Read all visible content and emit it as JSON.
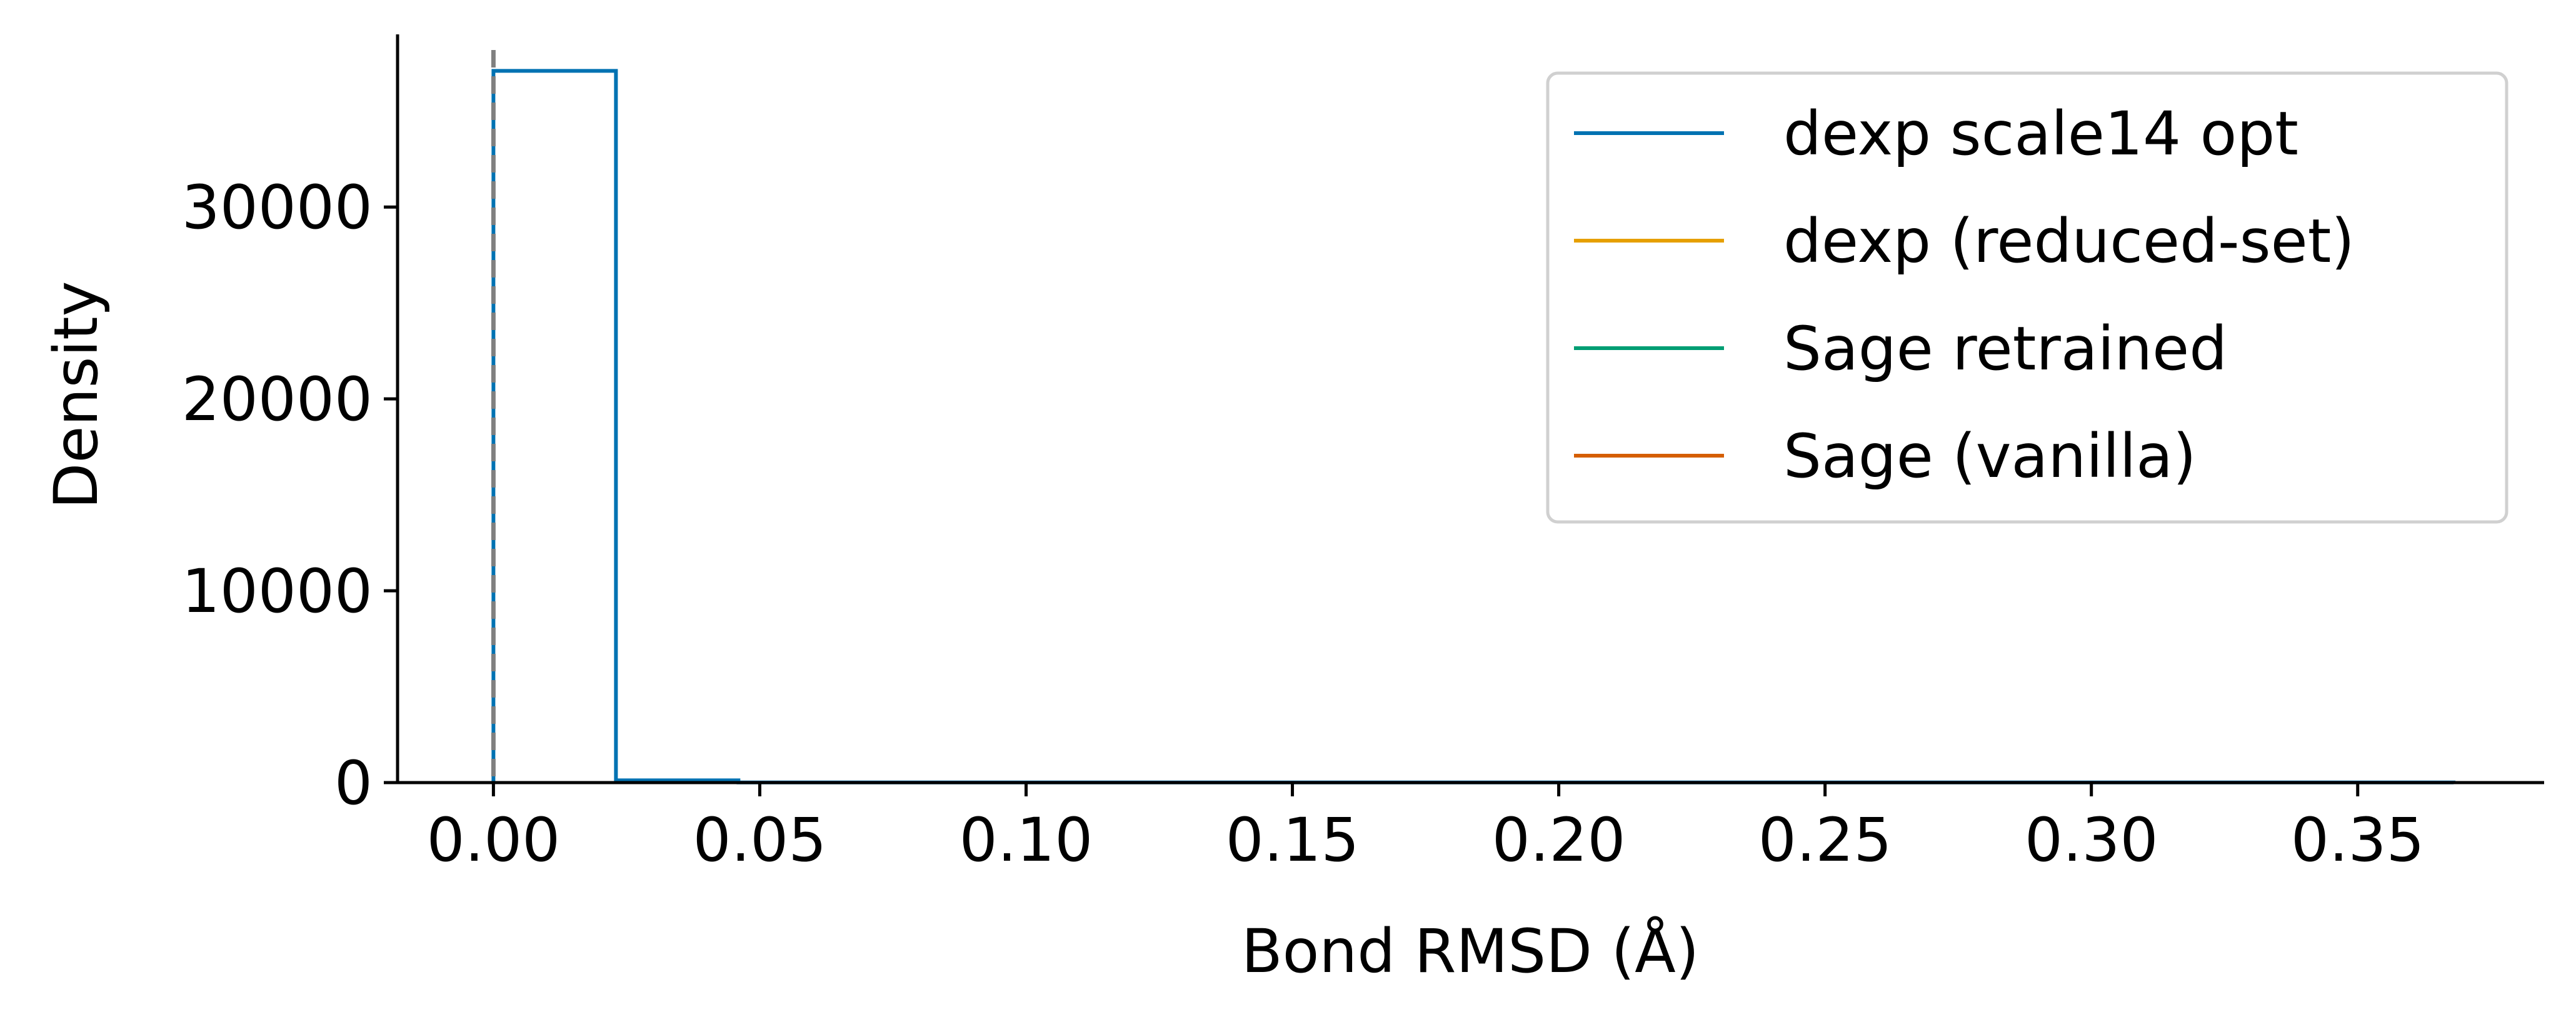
{
  "chart_data": {
    "type": "line",
    "title": "",
    "xlabel": "Bond RMSD (Å)",
    "ylabel": "Density",
    "xlim": [
      -0.018,
      0.385
    ],
    "ylim": [
      0,
      39000
    ],
    "xticks": [
      0.0,
      0.05,
      0.1,
      0.15,
      0.2,
      0.25,
      0.3,
      0.35
    ],
    "xtick_labels": [
      "0.00",
      "0.05",
      "0.10",
      "0.15",
      "0.20",
      "0.25",
      "0.30",
      "0.35"
    ],
    "yticks": [
      0,
      10000,
      20000,
      30000
    ],
    "ytick_labels": [
      "0",
      "10000",
      "20000",
      "30000"
    ],
    "grid": false,
    "legend_position": "top-right",
    "reference_line": {
      "x": 0.0,
      "style": "dashed",
      "color": "#808080"
    },
    "series": [
      {
        "name": "dexp scale14 opt",
        "color": "#0072b2",
        "style": "step",
        "bin_edges": [
          0.0,
          0.023,
          0.046,
          0.368
        ],
        "densities": [
          37100,
          120,
          10
        ]
      },
      {
        "name": "dexp (reduced-set)",
        "color": "#e69f00",
        "style": "step",
        "bin_edges": [],
        "densities": []
      },
      {
        "name": "Sage retrained",
        "color": "#009e73",
        "style": "step",
        "bin_edges": [],
        "densities": []
      },
      {
        "name": "Sage (vanilla)",
        "color": "#d55e00",
        "style": "step",
        "bin_edges": [],
        "densities": []
      }
    ]
  }
}
